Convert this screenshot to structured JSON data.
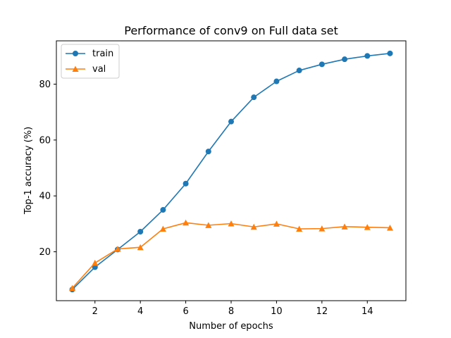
{
  "chart_data": {
    "type": "line",
    "title": "Performance of conv9 on Full data set",
    "xlabel": "Number of epochs",
    "ylabel": "Top-1 accuracy (%)",
    "xlim": [
      0.3,
      15.7
    ],
    "ylim": [
      2.5,
      95.5
    ],
    "xticks": [
      2,
      4,
      6,
      8,
      10,
      12,
      14
    ],
    "yticks": [
      20,
      40,
      60,
      80
    ],
    "grid": false,
    "legend_position": "upper-left",
    "x": [
      1,
      2,
      3,
      4,
      5,
      6,
      7,
      8,
      9,
      10,
      11,
      12,
      13,
      14,
      15
    ],
    "series": [
      {
        "name": "train",
        "color": "#1f77b4",
        "marker": "circle",
        "values": [
          6.5,
          14.5,
          20.8,
          27.2,
          35.0,
          44.4,
          55.9,
          66.6,
          75.3,
          81.0,
          84.9,
          87.1,
          88.9,
          90.1,
          91.0
        ]
      },
      {
        "name": "val",
        "color": "#ff7f0e",
        "marker": "triangle",
        "values": [
          7.0,
          16.0,
          21.0,
          21.6,
          28.2,
          30.4,
          29.5,
          30.1,
          28.9,
          30.0,
          28.2,
          28.3,
          29.0,
          28.8,
          28.6
        ]
      }
    ]
  }
}
